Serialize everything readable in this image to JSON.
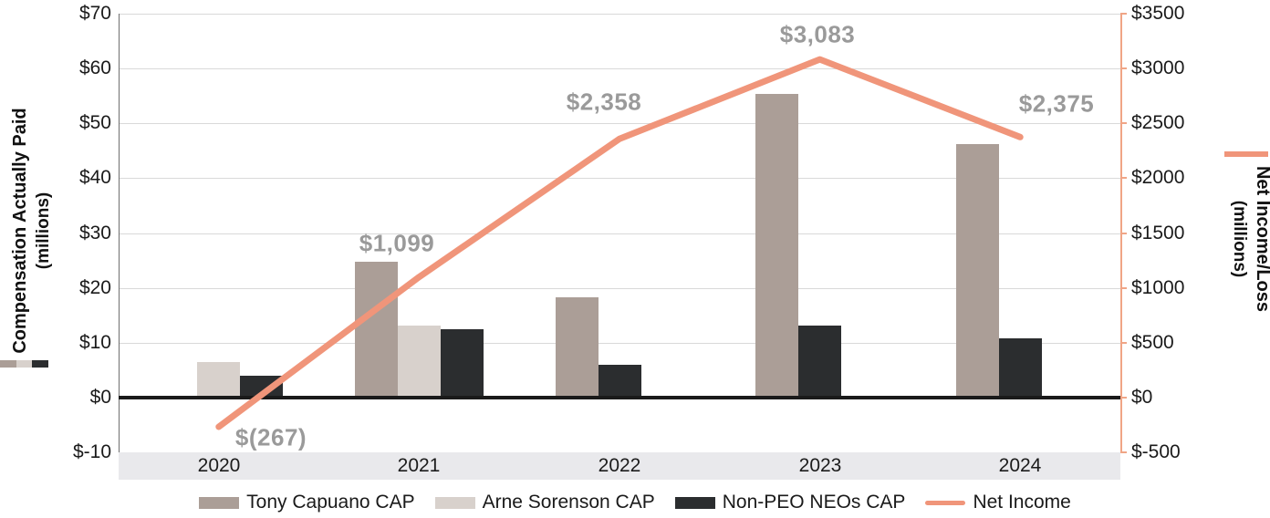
{
  "chart_data": {
    "type": "bar",
    "title": "",
    "categories": [
      "2020",
      "2021",
      "2022",
      "2023",
      "2024"
    ],
    "series": [
      {
        "name": "Tony Capuano CAP",
        "kind": "bar",
        "axis": "left",
        "color": "#ab9e97",
        "values": [
          null,
          24.7,
          18.3,
          55.3,
          46.2
        ]
      },
      {
        "name": "Arne Sorenson CAP",
        "kind": "bar",
        "axis": "left",
        "color": "#d8d1cc",
        "values": [
          6.4,
          13.1,
          null,
          null,
          null
        ]
      },
      {
        "name": "Non-PEO NEOs CAP",
        "kind": "bar",
        "axis": "left",
        "color": "#2b2d2f",
        "values": [
          3.9,
          12.4,
          5.9,
          13.2,
          10.8
        ]
      },
      {
        "name": "Net Income",
        "kind": "line",
        "axis": "right",
        "color": "#f0957a",
        "values": [
          -267,
          1099,
          2358,
          3083,
          2375
        ],
        "point_labels": [
          "$(267)",
          "$1,099",
          "$2,358",
          "$3,083",
          "$2,375"
        ],
        "label_offsets": [
          [
            57,
            12
          ],
          [
            -24,
            -37
          ],
          [
            -17,
            -40
          ],
          [
            -3,
            -27
          ],
          [
            40,
            -36
          ]
        ]
      }
    ],
    "left_axis": {
      "title": "Compensation Actually Paid",
      "subtitle": "(millions)",
      "min": -10,
      "max": 70,
      "tick_values": [
        70,
        60,
        50,
        40,
        30,
        20,
        10,
        0,
        -10
      ],
      "tick_labels": [
        "$70",
        "$60",
        "$50",
        "$40",
        "$30",
        "$20",
        "$10",
        "$0",
        "$-10"
      ]
    },
    "right_axis": {
      "title": "Net Income/Loss",
      "subtitle": "(millions)",
      "min": -500,
      "max": 3500,
      "tick_values": [
        3500,
        3000,
        2500,
        2000,
        1500,
        1000,
        500,
        0,
        -500
      ],
      "tick_labels": [
        "$3500",
        "$3000",
        "$2500",
        "$2000",
        "$1500",
        "$1000",
        "$500",
        "$0",
        "$-500"
      ]
    },
    "legend_position": "bottom",
    "grid": true
  }
}
